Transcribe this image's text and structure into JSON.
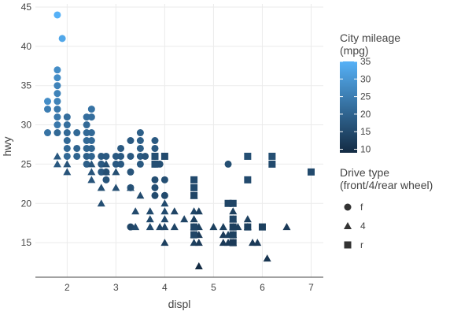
{
  "chart_data": {
    "type": "scatter",
    "xlabel": "displ",
    "ylabel": "hwy",
    "xlim": [
      1.35,
      7.25
    ],
    "ylim": [
      10.6,
      45.4
    ],
    "x_ticks": [
      2,
      3,
      4,
      5,
      6,
      7
    ],
    "y_ticks": [
      15,
      20,
      25,
      30,
      35,
      40,
      45
    ],
    "grid": true,
    "color_scale": {
      "title_line1": "City mileage",
      "title_line2": "(mpg)",
      "min": 9,
      "max": 35,
      "ticks": [
        10,
        15,
        20,
        25,
        30,
        35
      ],
      "low_color": "#132b43",
      "high_color": "#56b1f7"
    },
    "shape_legend": {
      "title_line1": "Drive type",
      "title_line2": "(front/4/rear wheel)",
      "entries": [
        {
          "label": "f",
          "shape": "circle"
        },
        {
          "label": "4",
          "shape": "triangle"
        },
        {
          "label": "r",
          "shape": "square"
        }
      ]
    },
    "series": [
      {
        "drv": "f",
        "points": [
          [
            1.8,
            44,
            35
          ],
          [
            1.9,
            41,
            33
          ],
          [
            1.8,
            37,
            28
          ],
          [
            1.8,
            36,
            28
          ],
          [
            1.8,
            35,
            26
          ],
          [
            1.8,
            34,
            26
          ],
          [
            1.8,
            33,
            26
          ],
          [
            1.6,
            33,
            28
          ],
          [
            1.6,
            32,
            25
          ],
          [
            1.8,
            32,
            24
          ],
          [
            1.8,
            31,
            24
          ],
          [
            1.8,
            30,
            24
          ],
          [
            1.8,
            29,
            21
          ],
          [
            1.6,
            29,
            23
          ],
          [
            2.0,
            31,
            22
          ],
          [
            2.0,
            30,
            22
          ],
          [
            2.0,
            29,
            21
          ],
          [
            2.0,
            28,
            21
          ],
          [
            2.0,
            27,
            21
          ],
          [
            2.0,
            26,
            21
          ],
          [
            2.2,
            29,
            21
          ],
          [
            2.2,
            27,
            20
          ],
          [
            2.2,
            26,
            20
          ],
          [
            2.4,
            31,
            22
          ],
          [
            2.4,
            30,
            21
          ],
          [
            2.4,
            29,
            21
          ],
          [
            2.4,
            28,
            21
          ],
          [
            2.4,
            27,
            20
          ],
          [
            2.4,
            26,
            19
          ],
          [
            2.4,
            25,
            19
          ],
          [
            2.5,
            32,
            23
          ],
          [
            2.5,
            31,
            22
          ],
          [
            2.5,
            29,
            21
          ],
          [
            2.5,
            28,
            21
          ],
          [
            2.5,
            27,
            20
          ],
          [
            2.5,
            26,
            20
          ],
          [
            2.7,
            26,
            18
          ],
          [
            2.7,
            25,
            18
          ],
          [
            2.7,
            24,
            18
          ],
          [
            2.8,
            26,
            18
          ],
          [
            2.8,
            24,
            17
          ],
          [
            2.8,
            23,
            17
          ],
          [
            3.0,
            26,
            18
          ],
          [
            3.0,
            25,
            18
          ],
          [
            3.1,
            26,
            18
          ],
          [
            3.1,
            25,
            18
          ],
          [
            3.1,
            27,
            18
          ],
          [
            3.3,
            28,
            18
          ],
          [
            3.3,
            26,
            18
          ],
          [
            3.3,
            24,
            17
          ],
          [
            3.3,
            22,
            17
          ],
          [
            3.5,
            29,
            19
          ],
          [
            3.5,
            28,
            19
          ],
          [
            3.5,
            27,
            19
          ],
          [
            3.5,
            26,
            18
          ],
          [
            3.5,
            25,
            18
          ],
          [
            3.6,
            26,
            17
          ],
          [
            3.8,
            28,
            18
          ],
          [
            3.8,
            27,
            18
          ],
          [
            3.8,
            26,
            17
          ],
          [
            3.8,
            25,
            17
          ],
          [
            3.8,
            23,
            16
          ],
          [
            3.8,
            22,
            16
          ],
          [
            3.9,
            25,
            16
          ],
          [
            4.0,
            23,
            16
          ],
          [
            4.0,
            21,
            15
          ],
          [
            5.3,
            25,
            16
          ],
          [
            3.3,
            17,
            14
          ],
          [
            3.8,
            21,
            15
          ]
        ]
      },
      {
        "drv": "4",
        "points": [
          [
            1.8,
            26,
            18
          ],
          [
            1.8,
            25,
            18
          ],
          [
            2.0,
            25,
            17
          ],
          [
            2.0,
            24,
            17
          ],
          [
            2.5,
            25,
            17
          ],
          [
            2.5,
            24,
            17
          ],
          [
            2.5,
            23,
            17
          ],
          [
            2.7,
            20,
            16
          ],
          [
            2.7,
            22,
            16
          ],
          [
            2.8,
            24,
            16
          ],
          [
            2.8,
            25,
            16
          ],
          [
            3.0,
            24,
            16
          ],
          [
            3.0,
            22,
            16
          ],
          [
            3.3,
            22,
            16
          ],
          [
            3.4,
            19,
            15
          ],
          [
            3.4,
            17,
            15
          ],
          [
            3.7,
            19,
            15
          ],
          [
            3.7,
            17,
            15
          ],
          [
            3.7,
            18,
            15
          ],
          [
            3.9,
            17,
            14
          ],
          [
            4.0,
            20,
            15
          ],
          [
            4.0,
            19,
            15
          ],
          [
            4.0,
            18,
            15
          ],
          [
            4.0,
            17,
            14
          ],
          [
            4.0,
            15,
            13
          ],
          [
            4.2,
            17,
            14
          ],
          [
            4.2,
            19,
            14
          ],
          [
            4.4,
            18,
            14
          ],
          [
            4.6,
            21,
            14
          ],
          [
            4.6,
            19,
            14
          ],
          [
            4.6,
            18,
            13
          ],
          [
            4.6,
            17,
            13
          ],
          [
            4.6,
            16,
            13
          ],
          [
            4.6,
            15,
            13
          ],
          [
            4.7,
            19,
            13
          ],
          [
            4.7,
            17,
            13
          ],
          [
            4.7,
            16,
            12
          ],
          [
            4.7,
            15,
            12
          ],
          [
            4.7,
            12,
            9
          ],
          [
            5.0,
            17,
            13
          ],
          [
            5.2,
            17,
            13
          ],
          [
            5.2,
            16,
            12
          ],
          [
            5.2,
            15,
            12
          ],
          [
            5.3,
            16,
            13
          ],
          [
            5.3,
            15,
            12
          ],
          [
            5.4,
            19,
            13
          ],
          [
            5.4,
            18,
            13
          ],
          [
            5.4,
            17,
            13
          ],
          [
            5.4,
            16,
            12
          ],
          [
            5.4,
            15,
            12
          ],
          [
            5.7,
            18,
            13
          ],
          [
            5.7,
            17,
            13
          ],
          [
            5.9,
            15,
            12
          ],
          [
            6.1,
            13,
            11
          ],
          [
            6.5,
            17,
            12
          ],
          [
            5.5,
            17,
            13
          ],
          [
            5.8,
            15,
            12
          ],
          [
            3.5,
            21,
            15
          ]
        ]
      },
      {
        "drv": "r",
        "points": [
          [
            3.8,
            26,
            16
          ],
          [
            3.8,
            25,
            16
          ],
          [
            4.0,
            26,
            15
          ],
          [
            4.6,
            23,
            15
          ],
          [
            4.6,
            22,
            15
          ],
          [
            4.6,
            21,
            14
          ],
          [
            4.6,
            17,
            14
          ],
          [
            4.6,
            16,
            14
          ],
          [
            5.3,
            20,
            14
          ],
          [
            5.4,
            20,
            14
          ],
          [
            5.4,
            18,
            14
          ],
          [
            5.4,
            17,
            13
          ],
          [
            5.4,
            16,
            13
          ],
          [
            5.4,
            15,
            12
          ],
          [
            5.7,
            26,
            16
          ],
          [
            5.7,
            23,
            15
          ],
          [
            5.7,
            17,
            13
          ],
          [
            6.0,
            17,
            13
          ],
          [
            6.2,
            26,
            16
          ],
          [
            6.2,
            25,
            15
          ],
          [
            7.0,
            24,
            15
          ]
        ]
      }
    ]
  }
}
